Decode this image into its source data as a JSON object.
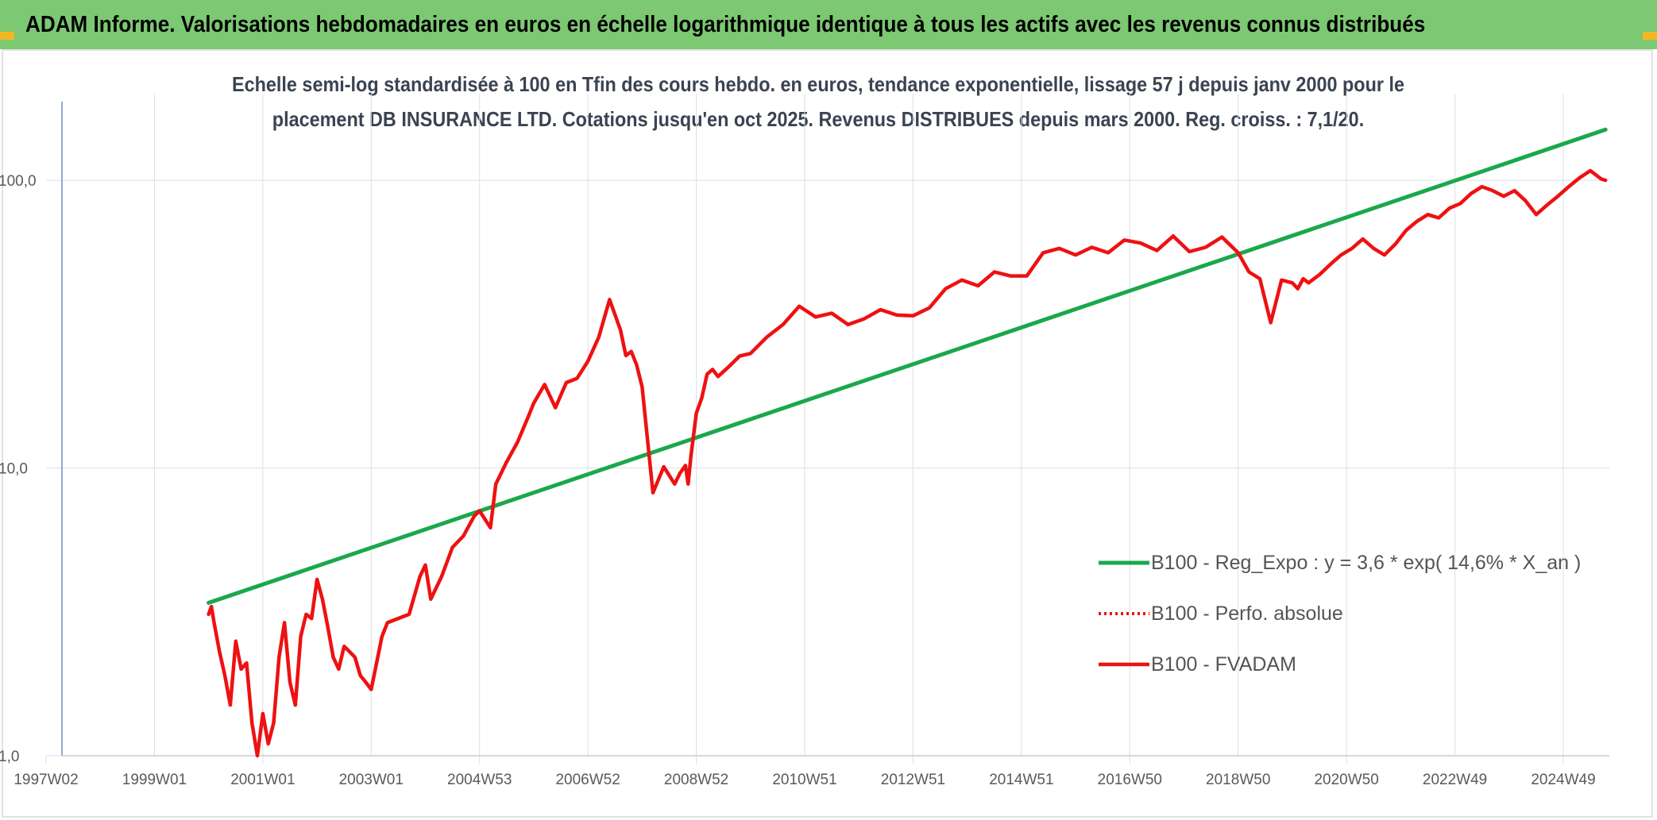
{
  "header": {
    "title": "ADAM Informe. Valorisations hebdomadaires en euros en échelle logarithmique identique à tous les actifs avec les revenus connus distribués"
  },
  "colors": {
    "header_bg": "#7dc872",
    "corner_accent": "#f2b824",
    "regression": "#1aa84a",
    "fvadam": "#ee1111",
    "perf_absolue": "#ee1111",
    "grid": "#dcdfe4",
    "axis_text": "#5a5a5a"
  },
  "chart_data": {
    "type": "line",
    "title_lines": [
      "Echelle semi-log standardisée à 100 en Tfin des cours hebdo. en euros, tendance exponentielle, lissage 57 j depuis janv 2000 pour le",
      "placement DB INSURANCE LTD. Cotations jusqu'en oct 2025. Revenus DISTRIBUES depuis mars 2000. Reg. croiss. : 7,1/20."
    ],
    "y_scale": "log",
    "ylim": [
      1,
      200
    ],
    "y_ticks": [
      {
        "value": 1,
        "label": "1,0"
      },
      {
        "value": 10,
        "label": "10,0"
      },
      {
        "value": 100,
        "label": "100,0"
      }
    ],
    "xlim": [
      1997.0,
      2025.85
    ],
    "x_ticks": [
      {
        "value": 1997.0,
        "label": "1997W02"
      },
      {
        "value": 1999.0,
        "label": "1999W01"
      },
      {
        "value": 2001.0,
        "label": "2001W01"
      },
      {
        "value": 2003.0,
        "label": "2003W01"
      },
      {
        "value": 2005.0,
        "label": "2004W53"
      },
      {
        "value": 2007.0,
        "label": "2006W52"
      },
      {
        "value": 2009.0,
        "label": "2008W52"
      },
      {
        "value": 2011.0,
        "label": "2010W51"
      },
      {
        "value": 2013.0,
        "label": "2012W51"
      },
      {
        "value": 2015.0,
        "label": "2014W51"
      },
      {
        "value": 2017.0,
        "label": "2016W50"
      },
      {
        "value": 2019.0,
        "label": "2018W50"
      },
      {
        "value": 2021.0,
        "label": "2020W50"
      },
      {
        "value": 2023.0,
        "label": "2022W49"
      },
      {
        "value": 2025.0,
        "label": "2024W49"
      }
    ],
    "grid": true,
    "legend_position": "right",
    "series": [
      {
        "name": "B100 - Reg_Expo : y = 3,6 * exp( 14,6% * X_an )",
        "style": "line",
        "x": [
          2000.0,
          2025.78
        ],
        "y": [
          3.4,
          150
        ]
      },
      {
        "name": "B100 - Perfo. absolue",
        "style": "dotted",
        "x": [],
        "y": []
      },
      {
        "name": "B100 - FVADAM",
        "style": "line",
        "x": [
          2000.0,
          2000.05,
          2000.1,
          2000.2,
          2000.3,
          2000.4,
          2000.5,
          2000.6,
          2000.7,
          2000.8,
          2000.9,
          2001.0,
          2001.1,
          2001.2,
          2001.3,
          2001.4,
          2001.5,
          2001.6,
          2001.7,
          2001.8,
          2001.9,
          2002.0,
          2002.1,
          2002.2,
          2002.3,
          2002.4,
          2002.5,
          2002.6,
          2002.7,
          2002.8,
          2002.9,
          2003.0,
          2003.1,
          2003.2,
          2003.3,
          2003.5,
          2003.7,
          2003.9,
          2004.0,
          2004.1,
          2004.3,
          2004.5,
          2004.7,
          2004.9,
          2005.0,
          2005.2,
          2005.3,
          2005.5,
          2005.7,
          2005.9,
          2006.0,
          2006.2,
          2006.4,
          2006.6,
          2006.8,
          2007.0,
          2007.2,
          2007.4,
          2007.6,
          2007.7,
          2007.8,
          2007.9,
          2008.0,
          2008.2,
          2008.4,
          2008.6,
          2008.7,
          2008.8,
          2008.85,
          2008.9,
          2009.0,
          2009.1,
          2009.2,
          2009.3,
          2009.4,
          2009.6,
          2009.8,
          2010.0,
          2010.3,
          2010.6,
          2010.9,
          2011.2,
          2011.5,
          2011.8,
          2012.1,
          2012.4,
          2012.7,
          2013.0,
          2013.3,
          2013.6,
          2013.9,
          2014.2,
          2014.5,
          2014.8,
          2015.1,
          2015.4,
          2015.7,
          2016.0,
          2016.3,
          2016.6,
          2016.9,
          2017.2,
          2017.5,
          2017.8,
          2018.1,
          2018.4,
          2018.7,
          2019.0,
          2019.2,
          2019.4,
          2019.6,
          2019.8,
          2020.0,
          2020.1,
          2020.2,
          2020.3,
          2020.5,
          2020.7,
          2020.9,
          2021.1,
          2021.3,
          2021.5,
          2021.7,
          2021.9,
          2022.1,
          2022.3,
          2022.5,
          2022.7,
          2022.9,
          2023.1,
          2023.3,
          2023.5,
          2023.7,
          2023.9,
          2024.1,
          2024.3,
          2024.5,
          2024.7,
          2024.9,
          2025.1,
          2025.3,
          2025.5,
          2025.7,
          2025.78
        ],
        "y": [
          3.1,
          3.3,
          2.9,
          2.3,
          1.9,
          1.5,
          2.5,
          2.0,
          2.1,
          1.3,
          1.0,
          1.4,
          1.1,
          1.3,
          2.2,
          2.9,
          1.8,
          1.5,
          2.6,
          3.1,
          3.0,
          4.1,
          3.5,
          2.8,
          2.2,
          2.0,
          2.4,
          2.3,
          2.2,
          1.9,
          1.8,
          1.7,
          2.1,
          2.6,
          2.9,
          3.0,
          3.1,
          4.2,
          4.6,
          3.5,
          4.2,
          5.3,
          5.8,
          6.8,
          7.1,
          6.2,
          8.8,
          10.5,
          12.3,
          15.1,
          16.8,
          19.5,
          16.2,
          19.8,
          20.5,
          23.5,
          28.5,
          38.5,
          30.2,
          24.6,
          25.4,
          22.8,
          19.1,
          8.2,
          10.1,
          8.8,
          9.6,
          10.2,
          8.8,
          11.0,
          15.5,
          17.5,
          21.2,
          22.0,
          20.8,
          22.5,
          24.5,
          25.0,
          28.5,
          31.5,
          36.5,
          33.5,
          34.5,
          31.5,
          33.0,
          35.5,
          34.0,
          33.8,
          36.0,
          42.0,
          45.0,
          43.0,
          48.0,
          46.5,
          46.5,
          56.0,
          58.0,
          55.0,
          58.5,
          56.0,
          62.0,
          60.5,
          57.0,
          64.0,
          56.5,
          58.5,
          63.5,
          56.0,
          48.0,
          45.5,
          32.0,
          45.0,
          44.0,
          42.0,
          45.5,
          44.0,
          47.0,
          51.0,
          55.0,
          58.0,
          62.5,
          58.0,
          55.0,
          60.0,
          67.0,
          72.0,
          76.0,
          74.0,
          80.0,
          83.0,
          90.0,
          95.0,
          92.0,
          88.0,
          92.0,
          85.0,
          76.0,
          82.0,
          88.0,
          95.0,
          102.0,
          108.0,
          101.0,
          100.0
        ]
      }
    ]
  }
}
